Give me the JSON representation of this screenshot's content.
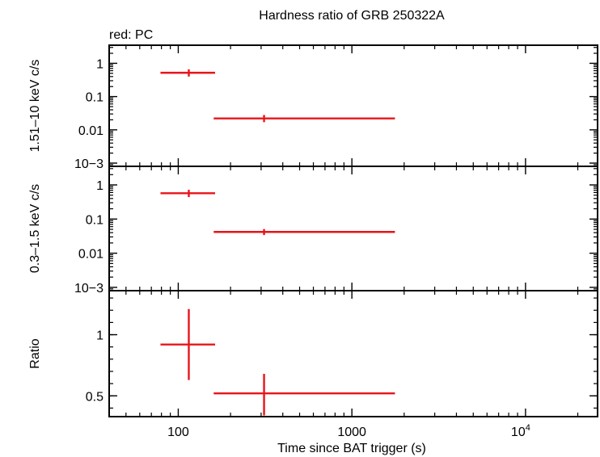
{
  "title": "Hardness ratio of GRB 250322A",
  "legend": "red: PC",
  "colors": {
    "series": "#e8141a",
    "axes": "#000000"
  },
  "chart_data": [
    {
      "type": "scatter",
      "panel": "hard",
      "ylabel": "1.51–10 keV c/s",
      "yscale": "log",
      "ylim": [
        0.0008,
        3.5
      ],
      "yticks": [
        {
          "value": 1,
          "label": "1"
        },
        {
          "value": 0.1,
          "label": "0.1"
        },
        {
          "value": 0.01,
          "label": "0.01"
        },
        {
          "value": 0.001,
          "label": "10−3"
        }
      ],
      "points": [
        {
          "x": 115,
          "xlo": 79,
          "xhi": 163,
          "y": 0.52,
          "ylo": 0.4,
          "yhi": 0.66
        },
        {
          "x": 312,
          "xlo": 160,
          "xhi": 1770,
          "y": 0.022,
          "ylo": 0.017,
          "yhi": 0.028
        }
      ]
    },
    {
      "type": "scatter",
      "panel": "soft",
      "ylabel": "0.3–1.5 keV c/s",
      "yscale": "log",
      "ylim": [
        0.0008,
        3.5
      ],
      "yticks": [
        {
          "value": 1,
          "label": "1"
        },
        {
          "value": 0.1,
          "label": "0.1"
        },
        {
          "value": 0.01,
          "label": "0.01"
        },
        {
          "value": 0.001,
          "label": "10−3"
        }
      ],
      "points": [
        {
          "x": 115,
          "xlo": 79,
          "xhi": 163,
          "y": 0.57,
          "ylo": 0.44,
          "yhi": 0.72
        },
        {
          "x": 312,
          "xlo": 160,
          "xhi": 1770,
          "y": 0.042,
          "ylo": 0.034,
          "yhi": 0.051
        }
      ]
    },
    {
      "type": "scatter",
      "panel": "ratio",
      "ylabel": "Ratio",
      "yscale": "linear",
      "ylim": [
        0.33,
        1.36
      ],
      "yticks": [
        {
          "value": 1,
          "label": "1"
        },
        {
          "value": 0.5,
          "label": "0.5"
        }
      ],
      "points": [
        {
          "x": 115,
          "xlo": 79,
          "xhi": 163,
          "y": 0.92,
          "ylo": 0.63,
          "yhi": 1.21
        },
        {
          "x": 312,
          "xlo": 160,
          "xhi": 1770,
          "y": 0.52,
          "ylo": 0.34,
          "yhi": 0.68
        }
      ]
    }
  ],
  "xaxis": {
    "label": "Time since BAT trigger (s)",
    "scale": "log",
    "xlim": [
      40,
      26000
    ],
    "ticks": [
      {
        "value": 100,
        "label": "100"
      },
      {
        "value": 1000,
        "label": "1000"
      },
      {
        "value": 10000,
        "base": "10",
        "exp": "4"
      }
    ]
  }
}
